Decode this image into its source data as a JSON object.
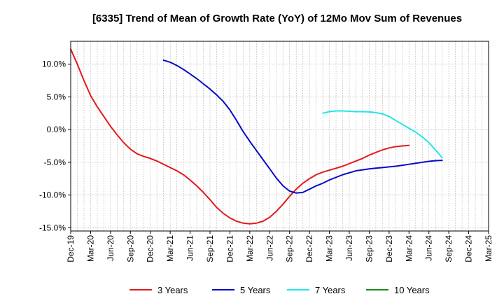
{
  "chart_data": {
    "type": "line",
    "title": "[6335]  Trend of Mean of Growth Rate (YoY) of 12Mo Mov Sum of Revenues",
    "xlabel": "",
    "ylabel": "",
    "ylim": [
      -15.5,
      13.5
    ],
    "y_ticks": [
      10,
      5,
      0,
      -5,
      -10,
      -15
    ],
    "y_tick_labels": [
      "10.0%",
      "5.0%",
      "0.0%",
      "-5.0%",
      "-10.0%",
      "-15.0%"
    ],
    "x_tick_labels": [
      "Dec-19",
      "Mar-20",
      "Jun-20",
      "Sep-20",
      "Dec-20",
      "Mar-21",
      "Jun-21",
      "Sep-21",
      "Dec-21",
      "Mar-22",
      "Jun-22",
      "Sep-22",
      "Dec-22",
      "Mar-23",
      "Jun-23",
      "Sep-23",
      "Dec-23",
      "Mar-24",
      "Jun-24",
      "Sep-24",
      "Dec-24",
      "Mar-25"
    ],
    "grid": true,
    "legend_position": "bottom",
    "series": [
      {
        "name": "3 Years",
        "color": "#e31a1c",
        "points": [
          [
            0,
            12.3
          ],
          [
            1,
            10.0
          ],
          [
            2,
            7.5
          ],
          [
            3,
            5.2
          ],
          [
            4,
            3.5
          ],
          [
            5,
            2.0
          ],
          [
            6,
            0.5
          ],
          [
            7,
            -0.8
          ],
          [
            8,
            -2.0
          ],
          [
            9,
            -3.0
          ],
          [
            10,
            -3.7
          ],
          [
            11,
            -4.1
          ],
          [
            12,
            -4.4
          ],
          [
            13,
            -4.8
          ],
          [
            14,
            -5.3
          ],
          [
            15,
            -5.8
          ],
          [
            16,
            -6.3
          ],
          [
            17,
            -6.9
          ],
          [
            18,
            -7.7
          ],
          [
            19,
            -8.6
          ],
          [
            20,
            -9.6
          ],
          [
            21,
            -10.7
          ],
          [
            22,
            -11.9
          ],
          [
            23,
            -12.8
          ],
          [
            24,
            -13.5
          ],
          [
            25,
            -14.0
          ],
          [
            26,
            -14.3
          ],
          [
            27,
            -14.4
          ],
          [
            28,
            -14.3
          ],
          [
            29,
            -14.0
          ],
          [
            30,
            -13.4
          ],
          [
            31,
            -12.5
          ],
          [
            32,
            -11.4
          ],
          [
            33,
            -10.2
          ],
          [
            34,
            -9.1
          ],
          [
            35,
            -8.2
          ],
          [
            36,
            -7.5
          ],
          [
            37,
            -6.9
          ],
          [
            38,
            -6.5
          ],
          [
            39,
            -6.2
          ],
          [
            40,
            -5.9
          ],
          [
            41,
            -5.6
          ],
          [
            42,
            -5.2
          ],
          [
            43,
            -4.8
          ],
          [
            44,
            -4.4
          ],
          [
            45,
            -3.9
          ],
          [
            46,
            -3.5
          ],
          [
            47,
            -3.1
          ],
          [
            48,
            -2.8
          ],
          [
            49,
            -2.6
          ],
          [
            50,
            -2.5
          ],
          [
            51,
            -2.4
          ]
        ]
      },
      {
        "name": "5 Years",
        "color": "#0a0ac8",
        "points": [
          [
            14,
            10.6
          ],
          [
            15,
            10.3
          ],
          [
            16,
            9.8
          ],
          [
            17,
            9.2
          ],
          [
            18,
            8.5
          ],
          [
            19,
            7.8
          ],
          [
            20,
            7.0
          ],
          [
            21,
            6.2
          ],
          [
            22,
            5.3
          ],
          [
            23,
            4.3
          ],
          [
            24,
            3.0
          ],
          [
            25,
            1.4
          ],
          [
            26,
            -0.3
          ],
          [
            27,
            -1.8
          ],
          [
            28,
            -3.2
          ],
          [
            29,
            -4.6
          ],
          [
            30,
            -6.0
          ],
          [
            31,
            -7.4
          ],
          [
            32,
            -8.6
          ],
          [
            33,
            -9.4
          ],
          [
            34,
            -9.7
          ],
          [
            35,
            -9.6
          ],
          [
            36,
            -9.1
          ],
          [
            37,
            -8.6
          ],
          [
            38,
            -8.2
          ],
          [
            39,
            -7.7
          ],
          [
            40,
            -7.3
          ],
          [
            41,
            -6.9
          ],
          [
            42,
            -6.6
          ],
          [
            43,
            -6.3
          ],
          [
            44,
            -6.15
          ],
          [
            45,
            -6.0
          ],
          [
            46,
            -5.9
          ],
          [
            47,
            -5.8
          ],
          [
            48,
            -5.7
          ],
          [
            49,
            -5.6
          ],
          [
            50,
            -5.45
          ],
          [
            51,
            -5.3
          ],
          [
            52,
            -5.15
          ],
          [
            53,
            -5.0
          ],
          [
            54,
            -4.85
          ],
          [
            55,
            -4.75
          ],
          [
            56,
            -4.7
          ]
        ]
      },
      {
        "name": "7 Years",
        "color": "#22e6e6",
        "points": [
          [
            38,
            2.5
          ],
          [
            39,
            2.75
          ],
          [
            40,
            2.85
          ],
          [
            41,
            2.85
          ],
          [
            42,
            2.8
          ],
          [
            43,
            2.75
          ],
          [
            44,
            2.75
          ],
          [
            45,
            2.7
          ],
          [
            46,
            2.6
          ],
          [
            47,
            2.4
          ],
          [
            48,
            2.0
          ],
          [
            49,
            1.4
          ],
          [
            50,
            0.8
          ],
          [
            51,
            0.2
          ],
          [
            52,
            -0.4
          ],
          [
            53,
            -1.1
          ],
          [
            54,
            -2.0
          ],
          [
            55,
            -3.1
          ],
          [
            56,
            -4.3
          ]
        ]
      },
      {
        "name": "10 Years",
        "color": "#1a8a1a",
        "points": []
      }
    ]
  }
}
